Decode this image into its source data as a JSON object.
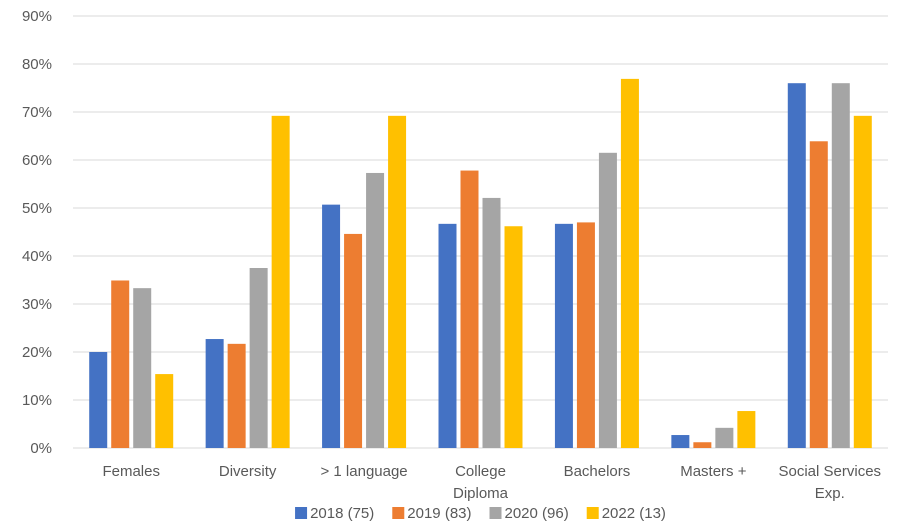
{
  "chart_data": {
    "type": "bar",
    "title": "",
    "xlabel": "",
    "ylabel": "",
    "ylim": [
      0,
      90
    ],
    "y_ticks": [
      "0%",
      "10%",
      "20%",
      "30%",
      "40%",
      "50%",
      "60%",
      "70%",
      "80%",
      "90%"
    ],
    "grid": true,
    "legend_position": "bottom",
    "categories": [
      [
        "Females"
      ],
      [
        "Diversity"
      ],
      [
        "> 1 language"
      ],
      [
        "College",
        "Diploma"
      ],
      [
        "Bachelors"
      ],
      [
        "Masters +"
      ],
      [
        "Social Services",
        "Exp."
      ]
    ],
    "series": [
      {
        "name": "2018 (75)",
        "color": "#4472c4",
        "values": [
          20,
          22.7,
          50.7,
          46.7,
          46.7,
          2.7,
          76
        ]
      },
      {
        "name": "2019 (83)",
        "color": "#ed7d31",
        "values": [
          34.9,
          21.7,
          44.6,
          57.8,
          47,
          1.2,
          63.9
        ]
      },
      {
        "name": "2020 (96)",
        "color": "#a5a5a5",
        "values": [
          33.3,
          37.5,
          57.3,
          52.1,
          61.5,
          4.2,
          76
        ]
      },
      {
        "name": "2022 (13)",
        "color": "#ffc000",
        "values": [
          15.4,
          69.2,
          69.2,
          46.2,
          76.9,
          7.7,
          69.2
        ]
      }
    ]
  }
}
